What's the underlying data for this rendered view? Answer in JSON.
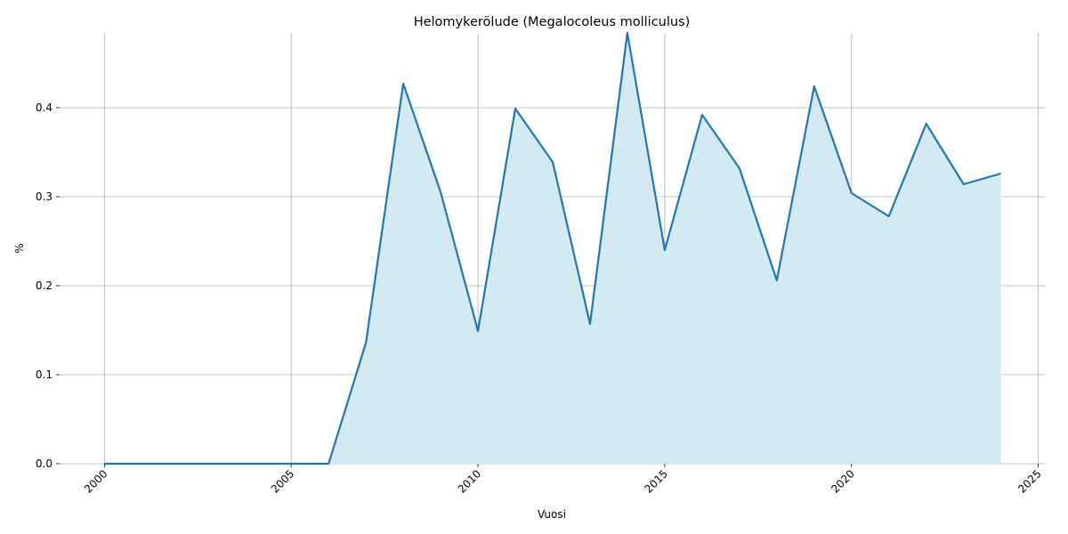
{
  "chart_data": {
    "type": "area-line",
    "title": "Helomykerölude (Megalocoleus molliculus)",
    "x_label": "Vuosi",
    "y_label": "%",
    "x": [
      2000,
      2001,
      2002,
      2003,
      2004,
      2005,
      2006,
      2007,
      2008,
      2009,
      2010,
      2011,
      2012,
      2013,
      2014,
      2015,
      2016,
      2017,
      2018,
      2019,
      2020,
      2021,
      2022,
      2023,
      2024
    ],
    "series": [
      {
        "name": "%",
        "color": "#1f77b4",
        "fill_color": "#d4eaf2",
        "values": [
          0,
          0,
          0,
          0,
          0,
          0,
          0,
          0.136,
          0.427,
          0.305,
          0.149,
          0.399,
          0.339,
          0.157,
          0.484,
          0.24,
          0.392,
          0.332,
          0.206,
          0.424,
          0.304,
          0.278,
          0.382,
          0.314,
          0.326
        ]
      }
    ],
    "xlim": [
      1998.8,
      2025.2
    ],
    "ylim": [
      0,
      0.484
    ],
    "xticks": [
      2000,
      2005,
      2010,
      2015,
      2020,
      2025
    ],
    "yticks": [
      {
        "value": 0,
        "label": "0.0"
      },
      0.1,
      0.2,
      0.3,
      0.4
    ],
    "grid": true
  }
}
